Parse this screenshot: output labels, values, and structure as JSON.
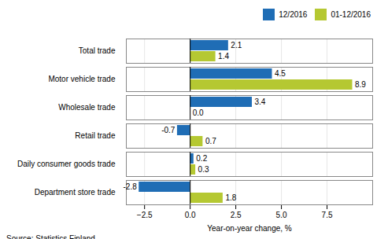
{
  "chart_data": {
    "type": "bar",
    "orientation": "horizontal",
    "categories": [
      "Department store trade",
      "Daily consumer goods trade",
      "Retail trade",
      "Wholesale trade",
      "Motor vehicle trade",
      "Total trade"
    ],
    "series": [
      {
        "name": "12/2016",
        "color": "#1f6db5",
        "values": [
          -2.8,
          0.2,
          -0.7,
          3.4,
          4.5,
          2.1
        ],
        "value_labels": [
          "-2.8",
          "0.2",
          "-0.7",
          "3.4",
          "4.5",
          "2.1"
        ]
      },
      {
        "name": "01-12/2016",
        "color": "#b5c832",
        "values": [
          1.8,
          0.3,
          0.7,
          0.0,
          8.9,
          1.4
        ],
        "value_labels": [
          "1.8",
          "0.3",
          "0.7",
          "0.0",
          "8.9",
          "1.4"
        ]
      }
    ],
    "xlabel": "Year-on-year change, %",
    "caption": "Source: Statistics Finland",
    "xlim": [
      -3.5,
      10.0
    ],
    "xticks": [
      {
        "value": -2.5,
        "label": "−2.5"
      },
      {
        "value": 0,
        "label": "0.0"
      },
      2.5,
      {
        "value": 5,
        "label": "5.0"
      },
      7.5
    ],
    "grid": true,
    "legend": "upper right",
    "data_labels": true
  }
}
